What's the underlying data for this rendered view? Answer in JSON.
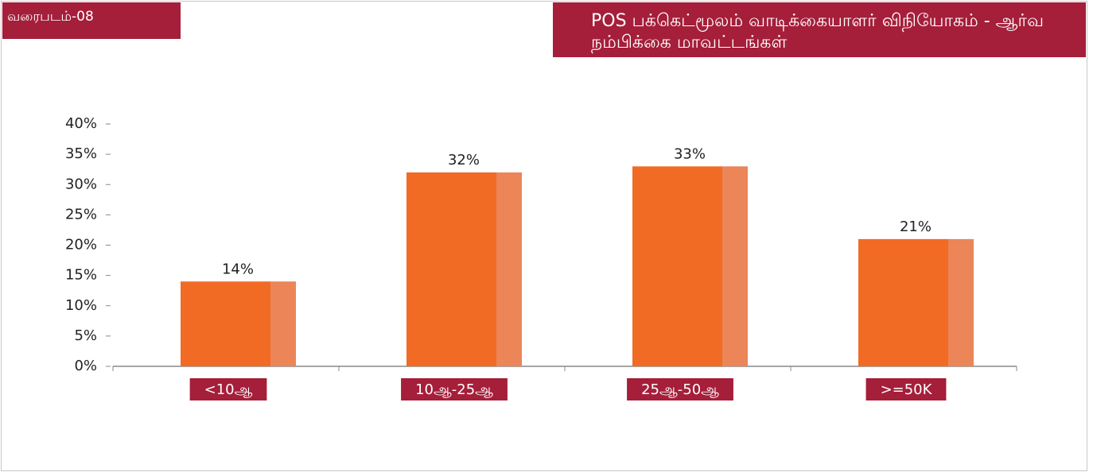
{
  "figure_label": "வரைபடம்-08",
  "chart_data": {
    "type": "bar",
    "title": "POS பக்கெட்மூலம் வாடிக்கையாளர் விநியோகம் - ஆர்வ நம்பிக்கை மாவட்டங்கள்",
    "categories": [
      "<10ஆ",
      "10ஆ-25ஆ",
      "25ஆ-50ஆ",
      ">=50K"
    ],
    "values": [
      14,
      32,
      33,
      21
    ],
    "value_labels": [
      "14%",
      "32%",
      "33%",
      "21%"
    ],
    "color": "#f26b24",
    "ylim": [
      0,
      40
    ],
    "yticks": [
      {
        "value": 0,
        "label": "0%"
      },
      {
        "value": 5,
        "label": "5%"
      },
      {
        "value": 10,
        "label": "10%"
      },
      {
        "value": 15,
        "label": "15%"
      },
      {
        "value": 20,
        "label": "20%"
      },
      {
        "value": 25,
        "label": "25%"
      },
      {
        "value": 30,
        "label": "30%"
      },
      {
        "value": 35,
        "label": "35%"
      },
      {
        "value": 40,
        "label": "40%"
      }
    ],
    "grid": false
  }
}
